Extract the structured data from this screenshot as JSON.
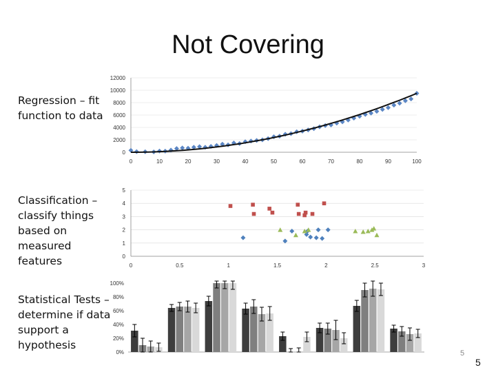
{
  "slide": {
    "title": "Not Covering",
    "label_regression": "Regression – fit function to data",
    "label_classification": "Classification – classify things based on measured features",
    "label_statistical": "Statistical Tests – determine if data support a hypothesis",
    "page_number_small": "5",
    "page_number_large": "5"
  },
  "chart_data": [
    {
      "type": "scatter",
      "ylim": [
        0,
        12000
      ],
      "xlim": [
        0,
        100
      ],
      "y_ticks": [
        "0",
        "2000",
        "4000",
        "6000",
        "8000",
        "10000",
        "12000"
      ],
      "x_ticks": [
        "0",
        "10",
        "20",
        "30",
        "40",
        "50",
        "60",
        "70",
        "80",
        "90",
        "100"
      ],
      "series": [
        {
          "color": "#5b86c4",
          "x": [
            0,
            2,
            5,
            8,
            10,
            12,
            14,
            16,
            18,
            20,
            22,
            24,
            26,
            28,
            30,
            32,
            34,
            36,
            38,
            40,
            42,
            44,
            46,
            48,
            50,
            52,
            54,
            56,
            58,
            60,
            62,
            64,
            66,
            68,
            70,
            72,
            74,
            76,
            78,
            80,
            82,
            84,
            86,
            88,
            90,
            92,
            94,
            96,
            98,
            100
          ],
          "y": [
            300,
            100,
            80,
            60,
            200,
            180,
            350,
            600,
            700,
            650,
            800,
            900,
            800,
            950,
            1100,
            1300,
            1200,
            1500,
            1400,
            1700,
            1800,
            1900,
            2000,
            2200,
            2500,
            2600,
            2900,
            3000,
            3300,
            3400,
            3600,
            3800,
            4100,
            4300,
            4400,
            4700,
            4900,
            5200,
            5500,
            5800,
            6100,
            6300,
            6600,
            6900,
            7200,
            7600,
            7900,
            8300,
            8600,
            9500
          ]
        },
        {
          "color": "#111111",
          "fit": true,
          "x": [
            0,
            10,
            20,
            30,
            40,
            50,
            60,
            70,
            80,
            90,
            100
          ],
          "y": [
            0,
            100,
            400,
            900,
            1600,
            2500,
            3600,
            4900,
            6400,
            8100,
            9500
          ]
        }
      ]
    },
    {
      "type": "scatter",
      "ylim": [
        0,
        5
      ],
      "xlim": [
        0,
        3
      ],
      "y_ticks": [
        "0",
        "1",
        "2",
        "3",
        "4",
        "5"
      ],
      "x_ticks": [
        "0",
        "0.5",
        "1",
        "1.5",
        "2",
        "2.5",
        "3"
      ],
      "series": [
        {
          "color": "#c0504d",
          "marker": "square",
          "x": [
            1.02,
            1.25,
            1.26,
            1.42,
            1.45,
            1.71,
            1.72,
            1.78,
            1.79,
            1.86,
            1.98
          ],
          "y": [
            3.8,
            3.9,
            3.2,
            3.6,
            3.3,
            3.9,
            3.2,
            3.1,
            3.3,
            3.2,
            4.0
          ]
        },
        {
          "color": "#4f81bd",
          "marker": "diamond",
          "x": [
            1.15,
            1.58,
            1.65,
            1.8,
            1.81,
            1.84,
            1.9,
            1.92,
            1.96,
            2.02
          ],
          "y": [
            1.4,
            1.15,
            1.9,
            1.65,
            1.9,
            1.45,
            1.4,
            2.0,
            1.35,
            2.0
          ]
        },
        {
          "color": "#9bbb59",
          "marker": "triangle",
          "x": [
            1.53,
            1.69,
            1.78,
            1.82,
            2.3,
            2.38,
            2.43,
            2.47,
            2.49,
            2.52
          ],
          "y": [
            2.0,
            1.6,
            1.9,
            2.0,
            1.9,
            1.85,
            1.9,
            2.0,
            2.1,
            1.6
          ]
        }
      ]
    },
    {
      "type": "bar",
      "ylim": [
        0,
        100
      ],
      "y_ticks": [
        "0%",
        "20%",
        "40%",
        "60%",
        "80%",
        "100%"
      ],
      "series": [
        {
          "color": "#3d3d3d",
          "values": [
            31,
            64,
            74,
            63,
            23,
            35,
            67,
            34
          ],
          "errors": [
            9,
            5,
            7,
            8,
            6,
            7,
            8,
            5
          ]
        },
        {
          "color": "#7f7f7f",
          "values": [
            10,
            66,
            100,
            66,
            0,
            34,
            90,
            30
          ],
          "errors": [
            10,
            6,
            7,
            10,
            5,
            8,
            10,
            7
          ]
        },
        {
          "color": "#a6a6a6",
          "values": [
            8,
            66,
            100,
            55,
            0,
            32,
            92,
            26
          ],
          "errors": [
            8,
            8,
            8,
            10,
            6,
            14,
            11,
            9
          ]
        },
        {
          "color": "#d9d9d9",
          "values": [
            7,
            64,
            100,
            56,
            22,
            20,
            91,
            27
          ],
          "errors": [
            6,
            7,
            9,
            10,
            7,
            8,
            9,
            6
          ]
        }
      ]
    }
  ]
}
